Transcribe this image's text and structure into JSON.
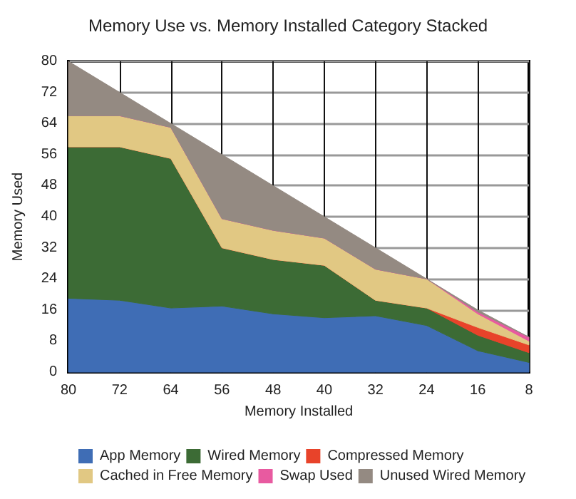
{
  "chart_data": {
    "type": "area",
    "title": "Memory Use vs. Memory Installed Category Stacked",
    "xlabel": "Memory Installed",
    "ylabel": "Memory Used",
    "stacked": true,
    "x": [
      80,
      72,
      64,
      56,
      48,
      40,
      32,
      24,
      16,
      8
    ],
    "series": [
      {
        "name": "App Memory",
        "color": "#3f6db5",
        "values": [
          19,
          18.5,
          16.5,
          17,
          15,
          14,
          14.5,
          12,
          5.5,
          2.5
        ]
      },
      {
        "name": "Wired Memory",
        "color": "#3c6b35",
        "values": [
          39,
          39.5,
          38.5,
          15,
          14,
          13.5,
          4,
          4.5,
          4,
          2.5
        ]
      },
      {
        "name": "Compressed Memory",
        "color": "#e8432a",
        "values": [
          0,
          0,
          0,
          0,
          0,
          0,
          0,
          0,
          2,
          2
        ]
      },
      {
        "name": "Cached in Free Memory",
        "color": "#e1c883",
        "values": [
          8,
          8,
          8,
          7.5,
          7.5,
          7,
          8,
          7.5,
          3.5,
          1
        ]
      },
      {
        "name": "Swap Used",
        "color": "#e85aa0",
        "values": [
          0,
          0,
          0,
          0,
          0,
          0,
          0,
          0,
          0.5,
          1
        ]
      },
      {
        "name": "Unused Wired Memory",
        "color": "#948a82",
        "values": [
          14,
          6,
          1,
          16.5,
          11.5,
          5.5,
          5.5,
          0,
          0.5,
          0
        ]
      }
    ],
    "xlim": [
      80,
      8
    ],
    "xticks": [
      80,
      72,
      64,
      56,
      48,
      40,
      32,
      24,
      16,
      8
    ],
    "ylim": [
      0,
      80
    ],
    "yticks": [
      0,
      8,
      16,
      24,
      32,
      40,
      48,
      56,
      64,
      72,
      80
    ],
    "grid": true,
    "legend": "bottom"
  }
}
